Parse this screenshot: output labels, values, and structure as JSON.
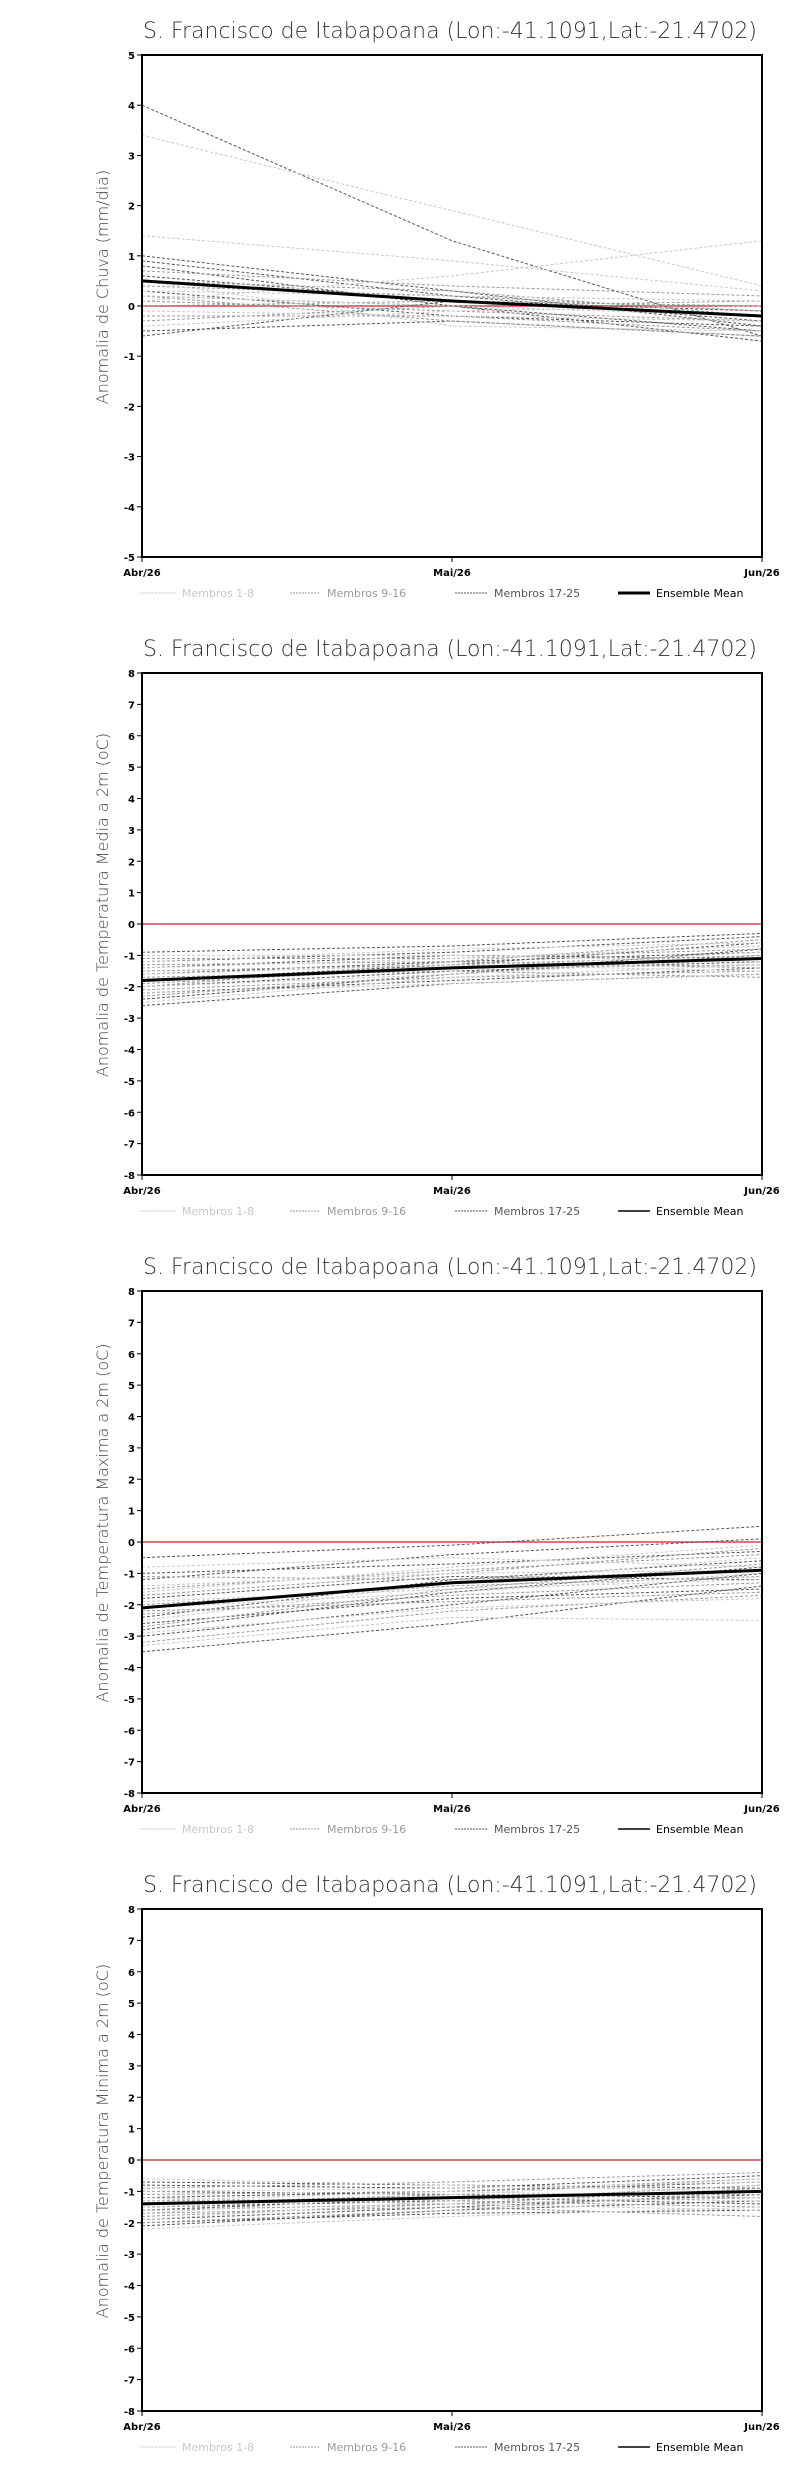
{
  "colors": {
    "frame": "#000000",
    "zero_line": "#d9434f",
    "members_1_8": "#c8c8c8",
    "members_9_16": "#9a9a9a",
    "members_17_25": "#555555",
    "mean": "#000000"
  },
  "chart_data": [
    {
      "type": "line",
      "title": "S. Francisco de Itabapoana (Lon:-41.1091,Lat:-21.4702)",
      "ylabel": "Anomalia de Chuva (mm/dia)",
      "xlabel": "",
      "categories": [
        "Abr/26",
        "Mai/26",
        "Jun/26"
      ],
      "ylim": [
        -5,
        5
      ],
      "yticks": [
        -5,
        -4,
        -3,
        -2,
        -1,
        0,
        1,
        2,
        3,
        4,
        5
      ],
      "reference_line": 0,
      "legend": [
        "Membros 1-8",
        "Membros 9-16",
        "Membros 17-25",
        "Ensemble Mean"
      ],
      "legend_position": "bottom",
      "series": [
        {
          "name": "Ensemble Mean",
          "values": [
            0.5,
            0.1,
            -0.2
          ]
        },
        {
          "name": "Membros 17-25",
          "values": [
            4.0,
            1.3,
            -0.6
          ]
        },
        {
          "name": "Membros 17-25",
          "values": [
            1.0,
            0.3,
            -0.4
          ]
        },
        {
          "name": "Membros 17-25",
          "values": [
            0.9,
            0.2,
            -0.3
          ]
        },
        {
          "name": "Membros 17-25",
          "values": [
            0.8,
            0.0,
            -0.5
          ]
        },
        {
          "name": "Membros 17-25",
          "values": [
            0.6,
            0.1,
            -0.2
          ]
        },
        {
          "name": "Membros 17-25",
          "values": [
            0.3,
            -0.2,
            -0.4
          ]
        },
        {
          "name": "Membros 17-25",
          "values": [
            -0.5,
            -0.3,
            -0.6
          ]
        },
        {
          "name": "Membros 17-25",
          "values": [
            -0.6,
            0.1,
            -0.1
          ]
        },
        {
          "name": "Membros 17-25",
          "values": [
            0.2,
            0.0,
            -0.7
          ]
        },
        {
          "name": "Membros 9-16",
          "values": [
            0.7,
            0.4,
            0.2
          ]
        },
        {
          "name": "Membros 9-16",
          "values": [
            0.4,
            0.2,
            -0.1
          ]
        },
        {
          "name": "Membros 9-16",
          "values": [
            0.1,
            -0.1,
            -0.3
          ]
        },
        {
          "name": "Membros 9-16",
          "values": [
            0.0,
            0.1,
            0.0
          ]
        },
        {
          "name": "Membros 9-16",
          "values": [
            -0.2,
            -0.2,
            -0.5
          ]
        },
        {
          "name": "Membros 9-16",
          "values": [
            0.5,
            0.3,
            -0.2
          ]
        },
        {
          "name": "Membros 9-16",
          "values": [
            -0.3,
            0.0,
            0.1
          ]
        },
        {
          "name": "Membros 9-16",
          "values": [
            0.2,
            -0.3,
            -0.6
          ]
        },
        {
          "name": "Membros 1-8",
          "values": [
            3.4,
            1.9,
            0.4
          ]
        },
        {
          "name": "Membros 1-8",
          "values": [
            1.4,
            0.9,
            0.3
          ]
        },
        {
          "name": "Membros 1-8",
          "values": [
            0.1,
            0.6,
            1.3
          ]
        },
        {
          "name": "Membros 1-8",
          "values": [
            0.3,
            0.2,
            0.1
          ]
        },
        {
          "name": "Membros 1-8",
          "values": [
            -0.1,
            -0.2,
            -0.3
          ]
        },
        {
          "name": "Membros 1-8",
          "values": [
            0.5,
            -0.4,
            -0.5
          ]
        },
        {
          "name": "Membros 1-8",
          "values": [
            -0.4,
            -0.1,
            0.0
          ]
        },
        {
          "name": "Membros 1-8",
          "values": [
            0.2,
            0.0,
            -0.2
          ]
        }
      ]
    },
    {
      "type": "line",
      "title": "S. Francisco de Itabapoana (Lon:-41.1091,Lat:-21.4702)",
      "ylabel": "Anomalia de Temperatura Media a 2m (oC)",
      "xlabel": "",
      "categories": [
        "Abr/26",
        "Mai/26",
        "Jun/26"
      ],
      "ylim": [
        -8,
        8
      ],
      "yticks": [
        -8,
        -7,
        -6,
        -5,
        -4,
        -3,
        -2,
        -1,
        0,
        1,
        2,
        3,
        4,
        5,
        6,
        7,
        8
      ],
      "reference_line": 0,
      "legend": [
        "Membros 1-8",
        "Membros 9-16",
        "Membros 17-25",
        "Ensemble Mean"
      ],
      "legend_position": "bottom",
      "series": [
        {
          "name": "Ensemble Mean",
          "values": [
            -1.8,
            -1.4,
            -1.1
          ]
        },
        {
          "name": "Membros 17-25",
          "values": [
            -2.4,
            -1.6,
            -0.8
          ]
        },
        {
          "name": "Membros 17-25",
          "values": [
            -1.2,
            -0.9,
            -0.4
          ]
        },
        {
          "name": "Membros 17-25",
          "values": [
            -2.0,
            -1.5,
            -1.2
          ]
        },
        {
          "name": "Membros 17-25",
          "values": [
            -1.6,
            -1.2,
            -0.9
          ]
        },
        {
          "name": "Membros 17-25",
          "values": [
            -0.9,
            -0.7,
            -0.3
          ]
        },
        {
          "name": "Membros 17-25",
          "values": [
            -2.2,
            -1.8,
            -1.4
          ]
        },
        {
          "name": "Membros 17-25",
          "values": [
            -1.4,
            -1.0,
            -1.1
          ]
        },
        {
          "name": "Membros 17-25",
          "values": [
            -2.6,
            -1.9,
            -1.6
          ]
        },
        {
          "name": "Membros 17-25",
          "values": [
            -1.8,
            -1.3,
            -0.6
          ]
        },
        {
          "name": "Membros 9-16",
          "values": [
            -1.5,
            -1.3,
            -1.0
          ]
        },
        {
          "name": "Membros 9-16",
          "values": [
            -2.1,
            -1.7,
            -1.5
          ]
        },
        {
          "name": "Membros 9-16",
          "values": [
            -1.1,
            -1.1,
            -0.8
          ]
        },
        {
          "name": "Membros 9-16",
          "values": [
            -1.9,
            -1.4,
            -1.3
          ]
        },
        {
          "name": "Membros 9-16",
          "values": [
            -2.3,
            -1.6,
            -1.0
          ]
        },
        {
          "name": "Membros 9-16",
          "values": [
            -1.3,
            -1.2,
            -1.4
          ]
        },
        {
          "name": "Membros 9-16",
          "values": [
            -1.7,
            -1.5,
            -1.7
          ]
        },
        {
          "name": "Membros 9-16",
          "values": [
            -2.0,
            -1.2,
            -0.5
          ]
        },
        {
          "name": "Membros 1-8",
          "values": [
            -1.4,
            -1.1,
            -0.7
          ]
        },
        {
          "name": "Membros 1-8",
          "values": [
            -2.2,
            -1.9,
            -1.6
          ]
        },
        {
          "name": "Membros 1-8",
          "values": [
            -1.0,
            -1.0,
            -1.2
          ]
        },
        {
          "name": "Membros 1-8",
          "values": [
            -2.5,
            -1.7,
            -1.3
          ]
        },
        {
          "name": "Membros 1-8",
          "values": [
            -1.6,
            -1.3,
            -1.5
          ]
        },
        {
          "name": "Membros 1-8",
          "values": [
            -1.2,
            -0.8,
            -0.6
          ]
        },
        {
          "name": "Membros 1-8",
          "values": [
            -2.0,
            -1.6,
            -1.1
          ]
        },
        {
          "name": "Membros 1-8",
          "values": [
            -1.8,
            -1.4,
            -0.9
          ]
        }
      ]
    },
    {
      "type": "line",
      "title": "S. Francisco de Itabapoana (Lon:-41.1091,Lat:-21.4702)",
      "ylabel": "Anomalia de Temperatura Maxima a 2m (oC)",
      "xlabel": "",
      "categories": [
        "Abr/26",
        "Mai/26",
        "Jun/26"
      ],
      "ylim": [
        -8,
        8
      ],
      "yticks": [
        -8,
        -7,
        -6,
        -5,
        -4,
        -3,
        -2,
        -1,
        0,
        1,
        2,
        3,
        4,
        5,
        6,
        7,
        8
      ],
      "reference_line": 0,
      "legend": [
        "Membros 1-8",
        "Membros 9-16",
        "Membros 17-25",
        "Ensemble Mean"
      ],
      "legend_position": "bottom",
      "series": [
        {
          "name": "Ensemble Mean",
          "values": [
            -2.1,
            -1.3,
            -0.9
          ]
        },
        {
          "name": "Membros 17-25",
          "values": [
            -3.5,
            -2.6,
            -1.4
          ]
        },
        {
          "name": "Membros 17-25",
          "values": [
            -0.5,
            -0.1,
            0.5
          ]
        },
        {
          "name": "Membros 17-25",
          "values": [
            -2.8,
            -1.6,
            -0.8
          ]
        },
        {
          "name": "Membros 17-25",
          "values": [
            -1.2,
            -0.4,
            0.1
          ]
        },
        {
          "name": "Membros 17-25",
          "values": [
            -2.4,
            -1.2,
            -0.6
          ]
        },
        {
          "name": "Membros 17-25",
          "values": [
            -1.8,
            -1.1,
            -1.2
          ]
        },
        {
          "name": "Membros 17-25",
          "values": [
            -3.0,
            -2.0,
            -1.0
          ]
        },
        {
          "name": "Membros 17-25",
          "values": [
            -1.0,
            -0.7,
            -0.3
          ]
        },
        {
          "name": "Membros 17-25",
          "values": [
            -2.6,
            -1.8,
            -1.5
          ]
        },
        {
          "name": "Membros 9-16",
          "values": [
            -2.0,
            -1.4,
            -1.1
          ]
        },
        {
          "name": "Membros 9-16",
          "values": [
            -3.2,
            -2.2,
            -1.7
          ]
        },
        {
          "name": "Membros 9-16",
          "values": [
            -1.5,
            -0.9,
            -0.4
          ]
        },
        {
          "name": "Membros 9-16",
          "values": [
            -2.3,
            -1.7,
            -1.3
          ]
        },
        {
          "name": "Membros 9-16",
          "values": [
            -1.1,
            -1.2,
            -0.9
          ]
        },
        {
          "name": "Membros 9-16",
          "values": [
            -2.7,
            -1.5,
            -0.7
          ]
        },
        {
          "name": "Membros 9-16",
          "values": [
            -1.7,
            -1.0,
            -0.2
          ]
        },
        {
          "name": "Membros 9-16",
          "values": [
            -2.2,
            -1.9,
            -1.6
          ]
        },
        {
          "name": "Membros 1-8",
          "values": [
            -3.3,
            -2.4,
            -2.5
          ]
        },
        {
          "name": "Membros 1-8",
          "values": [
            -1.4,
            -1.0,
            -0.9
          ]
        },
        {
          "name": "Membros 1-8",
          "values": [
            -2.5,
            -1.3,
            -0.5
          ]
        },
        {
          "name": "Membros 1-8",
          "values": [
            -1.9,
            -1.5,
            -1.2
          ]
        },
        {
          "name": "Membros 1-8",
          "values": [
            -0.8,
            -0.5,
            -0.8
          ]
        },
        {
          "name": "Membros 1-8",
          "values": [
            -2.9,
            -2.1,
            -1.8
          ]
        },
        {
          "name": "Membros 1-8",
          "values": [
            -1.6,
            -0.8,
            -0.1
          ]
        },
        {
          "name": "Membros 1-8",
          "values": [
            -2.1,
            -1.6,
            -1.0
          ]
        }
      ]
    },
    {
      "type": "line",
      "title": "S. Francisco de Itabapoana (Lon:-41.1091,Lat:-21.4702)",
      "ylabel": "Anomalia de Temperatura Minima a 2m (oC)",
      "xlabel": "",
      "categories": [
        "Abr/26",
        "Mai/26",
        "Jun/26"
      ],
      "ylim": [
        -8,
        8
      ],
      "yticks": [
        -8,
        -7,
        -6,
        -5,
        -4,
        -3,
        -2,
        -1,
        0,
        1,
        2,
        3,
        4,
        5,
        6,
        7,
        8
      ],
      "reference_line": 0,
      "legend": [
        "Membros 1-8",
        "Membros 9-16",
        "Membros 17-25",
        "Ensemble Mean"
      ],
      "legend_position": "bottom",
      "series": [
        {
          "name": "Ensemble Mean",
          "values": [
            -1.4,
            -1.2,
            -1.0
          ]
        },
        {
          "name": "Membros 17-25",
          "values": [
            -1.9,
            -1.5,
            -1.1
          ]
        },
        {
          "name": "Membros 17-25",
          "values": [
            -0.8,
            -0.9,
            -0.5
          ]
        },
        {
          "name": "Membros 17-25",
          "values": [
            -1.6,
            -1.2,
            -1.4
          ]
        },
        {
          "name": "Membros 17-25",
          "values": [
            -1.2,
            -1.0,
            -0.7
          ]
        },
        {
          "name": "Membros 17-25",
          "values": [
            -2.0,
            -1.7,
            -1.6
          ]
        },
        {
          "name": "Membros 17-25",
          "values": [
            -1.0,
            -1.1,
            -1.2
          ]
        },
        {
          "name": "Membros 17-25",
          "values": [
            -1.5,
            -1.3,
            -0.8
          ]
        },
        {
          "name": "Membros 17-25",
          "values": [
            -2.1,
            -1.6,
            -1.3
          ]
        },
        {
          "name": "Membros 17-25",
          "values": [
            -0.7,
            -0.8,
            -0.9
          ]
        },
        {
          "name": "Membros 9-16",
          "values": [
            -1.8,
            -1.4,
            -1.2
          ]
        },
        {
          "name": "Membros 9-16",
          "values": [
            -1.1,
            -1.0,
            -0.6
          ]
        },
        {
          "name": "Membros 9-16",
          "values": [
            -1.3,
            -1.3,
            -1.5
          ]
        },
        {
          "name": "Membros 9-16",
          "values": [
            -2.0,
            -1.6,
            -1.0
          ]
        },
        {
          "name": "Membros 9-16",
          "values": [
            -0.9,
            -0.7,
            -0.4
          ]
        },
        {
          "name": "Membros 9-16",
          "values": [
            -1.7,
            -1.5,
            -1.8
          ]
        },
        {
          "name": "Membros 9-16",
          "values": [
            -1.4,
            -1.1,
            -1.1
          ]
        },
        {
          "name": "Membros 9-16",
          "values": [
            -1.6,
            -1.4,
            -0.9
          ]
        },
        {
          "name": "Membros 1-8",
          "values": [
            -2.2,
            -1.8,
            -1.5
          ]
        },
        {
          "name": "Membros 1-8",
          "values": [
            -1.0,
            -0.9,
            -0.7
          ]
        },
        {
          "name": "Membros 1-8",
          "values": [
            -1.5,
            -1.2,
            -1.3
          ]
        },
        {
          "name": "Membros 1-8",
          "values": [
            -0.6,
            -0.8,
            -1.0
          ]
        },
        {
          "name": "Membros 1-8",
          "values": [
            -1.9,
            -1.3,
            -0.8
          ]
        },
        {
          "name": "Membros 1-8",
          "values": [
            -1.2,
            -1.4,
            -1.6
          ]
        },
        {
          "name": "Membros 1-8",
          "values": [
            -1.7,
            -1.1,
            -0.6
          ]
        },
        {
          "name": "Membros 1-8",
          "values": [
            -1.3,
            -1.0,
            -1.2
          ]
        }
      ]
    }
  ]
}
